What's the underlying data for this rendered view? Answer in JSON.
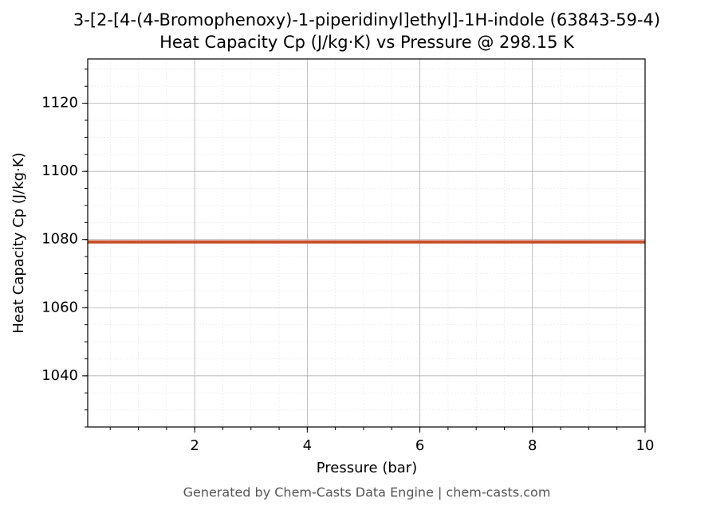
{
  "chart_data": {
    "type": "line",
    "title": "3-[2-[4-(4-Bromophenoxy)-1-piperidinyl]ethyl]-1H-indole (63843-59-4)",
    "subtitle": "Heat Capacity Cp (J/kg·K) vs Pressure @ 298.15 K",
    "x_label": "Pressure (bar)",
    "y_label": "Heat Capacity Cp (J/kg·K)",
    "footer": "Generated by Chem-Casts Data Engine | chem-casts.com",
    "x": [
      0.1,
      10
    ],
    "series": [
      {
        "name": "Cp",
        "color": "#c8502a",
        "values": [
          1079.3,
          1079.3
        ]
      }
    ],
    "xlim": [
      0.1,
      10
    ],
    "xticks": [
      2,
      4,
      6,
      8,
      10
    ],
    "ylim": [
      1025,
      1133
    ],
    "yticks": [
      1040,
      1060,
      1080,
      1100,
      1120
    ],
    "grid": true
  }
}
